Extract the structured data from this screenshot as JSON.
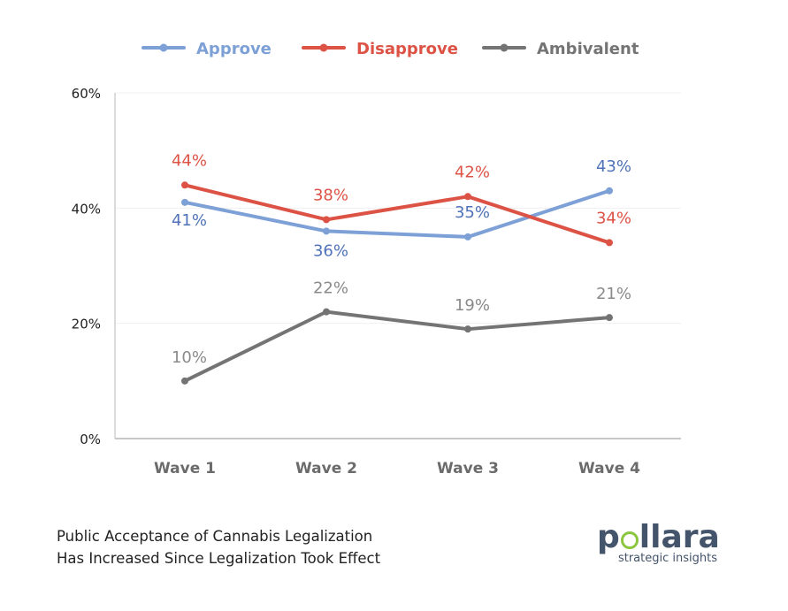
{
  "chart_data": {
    "type": "line",
    "title": "Public Acceptance of Cannabis Legalization Has Increased Since Legalization Took Effect",
    "categories": [
      "Wave 1",
      "Wave 2",
      "Wave 3",
      "Wave 4"
    ],
    "series": [
      {
        "name": "Approve",
        "color": "#7da0d6",
        "label_color": "#4f72b8",
        "values": [
          41,
          36,
          35,
          43
        ],
        "labels": [
          "41%",
          "36%",
          "35%",
          "43%"
        ]
      },
      {
        "name": "Disapprove",
        "color": "#dc5346",
        "label_color": "#dc5346",
        "values": [
          44,
          38,
          42,
          34
        ],
        "labels": [
          "44%",
          "38%",
          "42%",
          "34%"
        ]
      },
      {
        "name": "Ambivalent",
        "color": "#747474",
        "label_color": "#8a8a8a",
        "values": [
          10,
          22,
          19,
          21
        ],
        "labels": [
          "10%",
          "22%",
          "19%",
          "21%"
        ]
      }
    ],
    "yticks": [
      "0%",
      "20%",
      "40%",
      "60%"
    ],
    "ytick_values": [
      0,
      20,
      40,
      60
    ],
    "ylim": [
      0,
      60
    ],
    "xlabel": "",
    "ylabel": "",
    "grid": true,
    "legend": "top-center"
  },
  "caption": {
    "line1": "Public Acceptance of Cannabis Legalization",
    "line2": "Has Increased Since Legalization Took Effect"
  },
  "logo": {
    "word_start": "p",
    "word_end": "llara",
    "tagline": "strategic insights",
    "accent_color": "#8cc63f",
    "text_color": "#44546a"
  }
}
